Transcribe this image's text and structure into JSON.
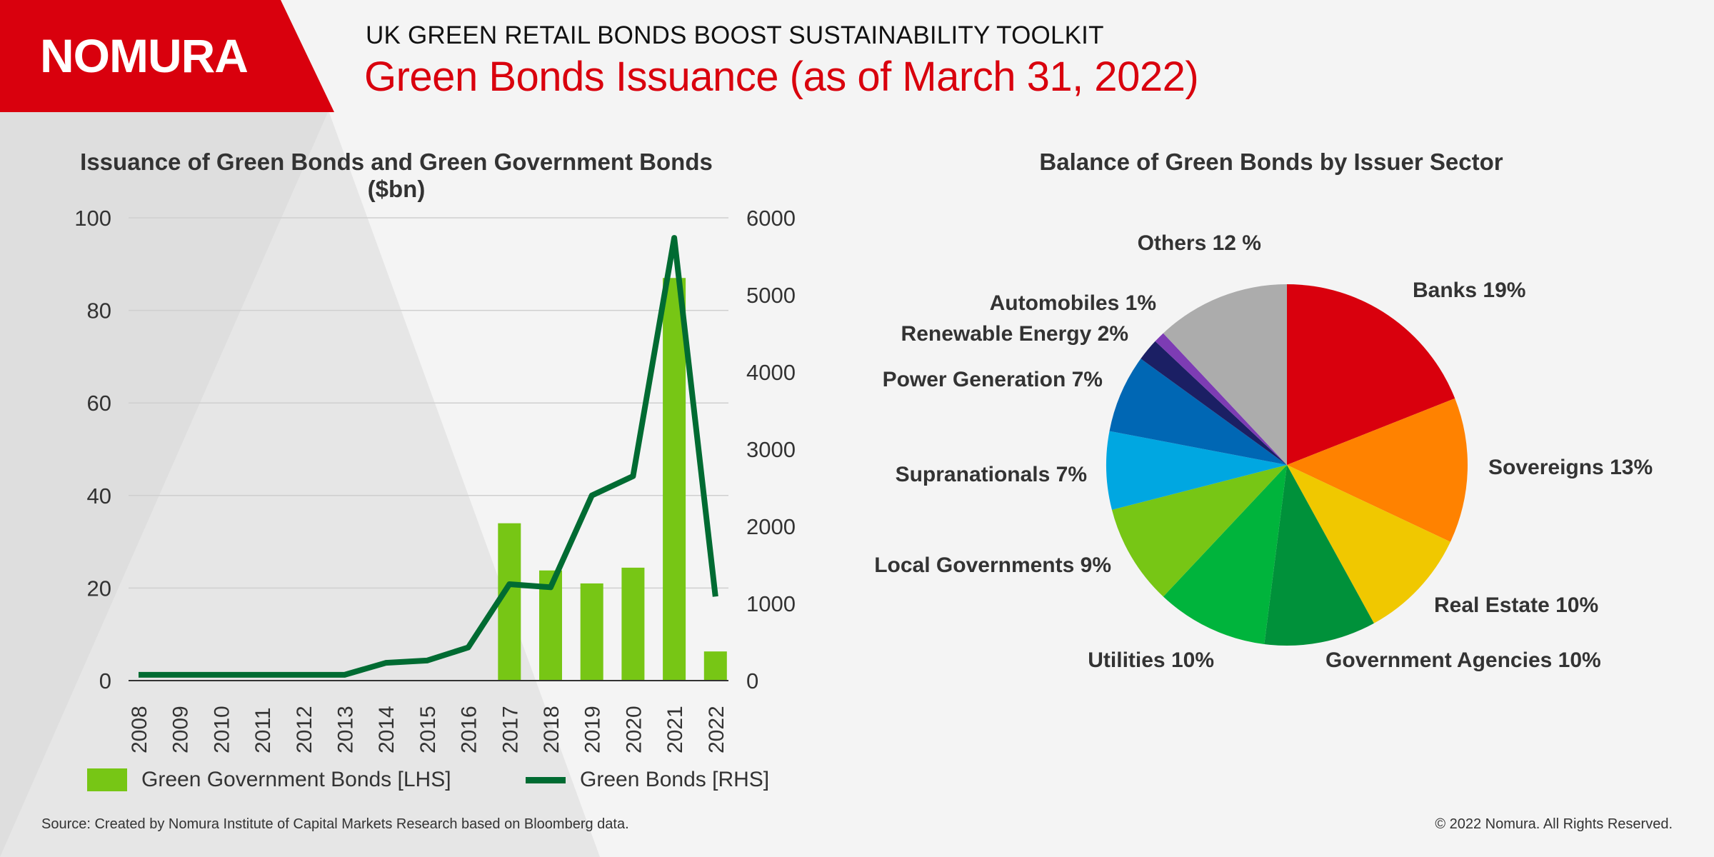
{
  "brand": {
    "logo": "NOMURA",
    "logo_color": "#d9000d"
  },
  "header": {
    "suptitle": "UK GREEN RETAIL BONDS BOOST SUSTAINABILITY TOOLKIT",
    "title": "Green Bonds Issuance (as of March 31, 2022)"
  },
  "chart_data": [
    {
      "type": "bar",
      "title": "Issuance of Green Bonds and Green Government Bonds ($bn)",
      "categories": [
        "2008",
        "2009",
        "2010",
        "2011",
        "2012",
        "2013",
        "2014",
        "2015",
        "2016",
        "2017",
        "2018",
        "2019",
        "2020",
        "2021",
        "2022"
      ],
      "ylim": [
        0,
        100
      ],
      "y2lim": [
        0,
        6000
      ],
      "yticks": [
        0,
        20,
        40,
        60,
        80,
        100
      ],
      "y2ticks": [
        0,
        1000,
        2000,
        3000,
        4000,
        5000,
        6000
      ],
      "grid": true,
      "legend_position": "bottom",
      "series": [
        {
          "name": "Green Government Bonds [LHS]",
          "type": "bar",
          "axis": "left",
          "color": "#77c615",
          "values": [
            0,
            0,
            0,
            0,
            0,
            0,
            0,
            0,
            0,
            34,
            23.8,
            21,
            24.4,
            87,
            6.3
          ]
        },
        {
          "name": "Green Bonds [RHS]",
          "type": "line",
          "axis": "right",
          "color": "#006b32",
          "values": [
            75,
            75,
            75,
            75,
            75,
            75,
            230,
            260,
            430,
            1250,
            1210,
            2400,
            2650,
            5740,
            1090
          ]
        }
      ]
    },
    {
      "type": "pie",
      "title": "Balance of Green Bonds by Issuer Sector",
      "slices": [
        {
          "label": "Banks 19%",
          "value": 19,
          "color": "#d9000d"
        },
        {
          "label": "Sovereigns 13%",
          "value": 13,
          "color": "#ff8200"
        },
        {
          "label": "Real Estate 10%",
          "value": 10,
          "color": "#f0c800"
        },
        {
          "label": "Government Agencies 10%",
          "value": 10,
          "color": "#00913a"
        },
        {
          "label": "Utilities 10%",
          "value": 10,
          "color": "#00b43c"
        },
        {
          "label": "Local Governments 9%",
          "value": 9,
          "color": "#77c615"
        },
        {
          "label": "Supranationals 7%",
          "value": 7,
          "color": "#00a7e1"
        },
        {
          "label": "Power Generation 7%",
          "value": 7,
          "color": "#0067b4"
        },
        {
          "label": "Renewable Energy 2%",
          "value": 2,
          "color": "#1b1f64"
        },
        {
          "label": "Automobiles 1%",
          "value": 1,
          "color": "#7d3cb4"
        },
        {
          "label": "Others 12 %",
          "value": 12,
          "color": "#acacac"
        }
      ]
    }
  ],
  "footer": {
    "source": "Source: Created by Nomura Institute of Capital Markets Research based on Bloomberg data.",
    "copyright": "© 2022 Nomura. All Rights Reserved."
  }
}
